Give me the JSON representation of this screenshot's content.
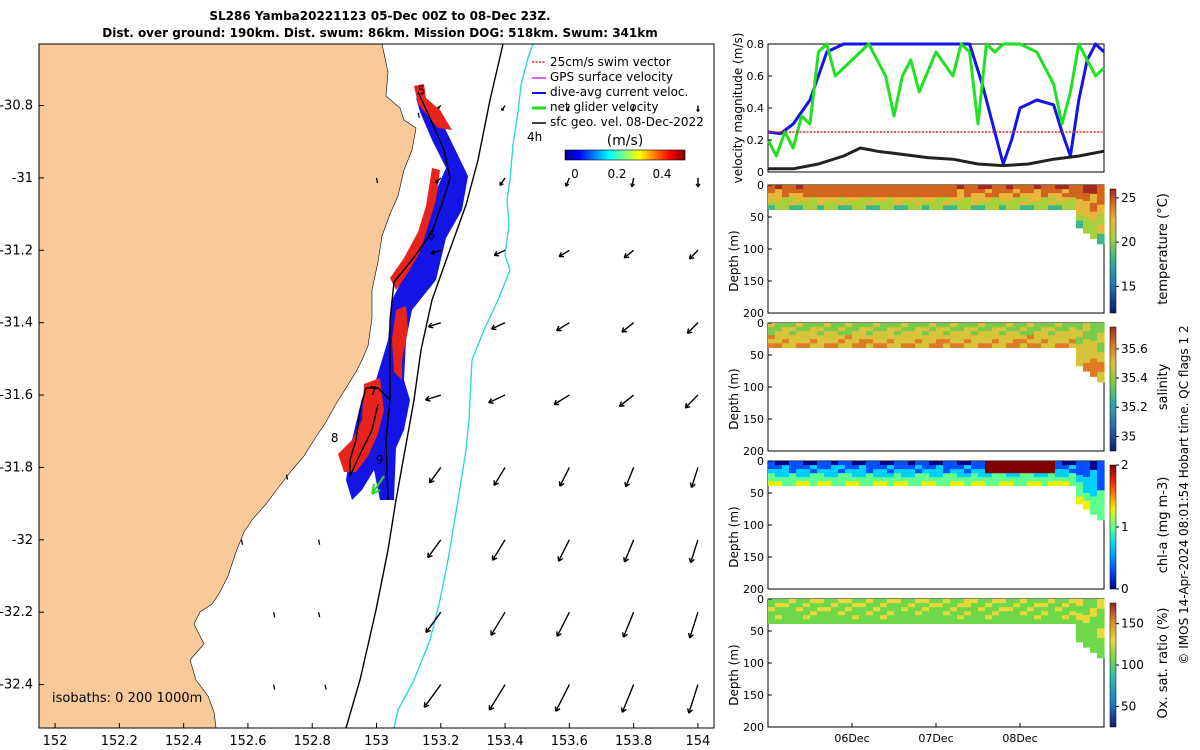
{
  "title": {
    "line1": "SL286 Yamba20221123 05-Dec 00Z to 08-Dec 23Z.",
    "line2": "Dist. over ground: 190km. Dist. swum: 86km. Mission DOG: 518km. Swum: 341km"
  },
  "footer_credit": "© IMOS 14-Apr-2024 08:01:54 Hobart time. QC flags 1  2",
  "colors": {
    "land": "#f9c99a",
    "swim_vector": "#e8231b",
    "current": "#1414e6",
    "glider_velocity": "#22e022",
    "geo_velocity": "#000000",
    "isobath_1000": "#30d8d8"
  },
  "chart_data": [
    {
      "type": "scatter",
      "name": "map",
      "xlim": [
        151.95,
        154.05
      ],
      "ylim": [
        -32.52,
        -30.63
      ],
      "xticks": [
        "152",
        "152.2",
        "152.4",
        "152.6",
        "152.8",
        "153",
        "153.2",
        "153.4",
        "153.6",
        "153.8",
        "154"
      ],
      "yticks": [
        "-30.8",
        "-31",
        "-31.2",
        "-31.4",
        "-31.6",
        "-31.8",
        "-32",
        "-32.2",
        "-32.4"
      ],
      "legend": {
        "placement": "top-right",
        "entries": [
          "25cm/s swim vector",
          "GPS surface velocity",
          "dive-avg current veloc.",
          "net glider velocity",
          "sfc geo. vel. 08-Dec-2022"
        ]
      },
      "colorbar": {
        "label": "(m/s)",
        "ticks": [
          "0",
          "0.2",
          "0.4"
        ],
        "range": [
          0,
          0.5
        ]
      },
      "isobaths_label": "isobaths: 0   200  1000m",
      "time_label": "4h",
      "day_markers": [
        {
          "label": "5",
          "lon": 153.14,
          "lat": -30.77
        },
        {
          "label": "6",
          "lon": 153.17,
          "lat": -31.17
        },
        {
          "label": "7",
          "lon": 152.99,
          "lat": -31.6
        },
        {
          "label": "8",
          "lon": 152.87,
          "lat": -31.73
        },
        {
          "label": "9",
          "lon": 153.01,
          "lat": -31.79
        }
      ],
      "track": [
        [
          153.09,
          -30.77
        ],
        [
          153.12,
          -30.89
        ],
        [
          153.15,
          -30.99
        ],
        [
          153.17,
          -31.08
        ],
        [
          153.15,
          -31.16
        ],
        [
          153.1,
          -31.25
        ],
        [
          153.03,
          -31.3
        ],
        [
          152.99,
          -31.38
        ],
        [
          152.99,
          -31.5
        ],
        [
          152.99,
          -31.6
        ],
        [
          152.98,
          -31.7
        ],
        [
          152.99,
          -31.87
        ],
        [
          152.93,
          -31.75
        ],
        [
          152.89,
          -31.66
        ],
        [
          152.93,
          -31.58
        ],
        [
          152.96,
          -31.62
        ],
        [
          152.93,
          -31.72
        ],
        [
          152.89,
          -31.82
        ],
        [
          152.87,
          -31.79
        ]
      ],
      "geo_vectors_grid": {
        "lons": [
          153.2,
          153.4,
          153.6,
          153.8,
          154.0
        ],
        "lats": [
          -30.8,
          -31.0,
          -31.2,
          -31.4,
          -31.6,
          -31.8,
          -32.0,
          -32.2,
          -32.4
        ]
      }
    },
    {
      "type": "line",
      "name": "velocity_magnitude",
      "ylabel": "velocity magnitude (m/s)",
      "ylim": [
        0,
        0.8
      ],
      "yticks": [
        "0",
        "0.2",
        "0.4",
        "0.6",
        "0.8"
      ],
      "xlim": [
        0,
        4
      ],
      "series": [
        {
          "name": "dive-avg current",
          "x": [
            0,
            0.15,
            0.3,
            0.5,
            0.7,
            0.9,
            1.2,
            1.5,
            1.8,
            2.0,
            2.2,
            2.4,
            2.55,
            2.7,
            2.8,
            2.9,
            3.0,
            3.2,
            3.4,
            3.5,
            3.6,
            3.7,
            3.8,
            3.9,
            4.0
          ],
          "values": [
            0.25,
            0.24,
            0.3,
            0.45,
            0.75,
            0.8,
            0.8,
            0.8,
            0.8,
            0.8,
            0.8,
            0.8,
            0.55,
            0.25,
            0.05,
            0.2,
            0.4,
            0.45,
            0.42,
            0.25,
            0.1,
            0.45,
            0.7,
            0.8,
            0.75
          ]
        },
        {
          "name": "net glider velocity",
          "x": [
            0,
            0.1,
            0.2,
            0.3,
            0.4,
            0.5,
            0.6,
            0.7,
            0.8,
            1.0,
            1.2,
            1.4,
            1.5,
            1.6,
            1.7,
            1.8,
            2.0,
            2.2,
            2.3,
            2.4,
            2.5,
            2.6,
            2.7,
            2.8,
            3.0,
            3.2,
            3.4,
            3.5,
            3.6,
            3.7,
            3.8,
            3.9,
            4.0
          ],
          "values": [
            0.2,
            0.1,
            0.25,
            0.15,
            0.35,
            0.3,
            0.75,
            0.8,
            0.6,
            0.7,
            0.8,
            0.6,
            0.35,
            0.6,
            0.7,
            0.5,
            0.75,
            0.6,
            0.8,
            0.75,
            0.3,
            0.8,
            0.75,
            0.8,
            0.8,
            0.75,
            0.55,
            0.3,
            0.5,
            0.8,
            0.7,
            0.6,
            0.65
          ]
        },
        {
          "name": "25cm/s swim vector",
          "x": [
            0,
            4
          ],
          "values": [
            0.25,
            0.25
          ]
        },
        {
          "name": "sfc geo. vel.",
          "x": [
            0,
            0.3,
            0.6,
            0.9,
            1.1,
            1.3,
            1.6,
            1.9,
            2.2,
            2.5,
            2.8,
            3.1,
            3.4,
            3.7,
            4.0
          ],
          "values": [
            0.02,
            0.02,
            0.05,
            0.1,
            0.15,
            0.13,
            0.11,
            0.09,
            0.08,
            0.05,
            0.04,
            0.05,
            0.08,
            0.1,
            0.13
          ]
        }
      ]
    },
    {
      "type": "heatmap",
      "name": "temperature",
      "ylabel": "Depth (m)",
      "clabel": "temperature (°C)",
      "ylim": [
        0,
        200
      ],
      "yticks": [
        "0",
        "50",
        "100",
        "150",
        "200"
      ],
      "ctick_labels": [
        "25",
        "20",
        "15"
      ],
      "cticks": [
        25,
        20,
        15
      ],
      "crange": [
        12,
        26
      ],
      "surface_value": 24.5,
      "deep_value": 18.0,
      "profile_depth_m": 38
    },
    {
      "type": "heatmap",
      "name": "salinity",
      "ylabel": "Depth (m)",
      "clabel": "salinity",
      "ylim": [
        0,
        200
      ],
      "yticks": [
        "0",
        "50",
        "100",
        "150",
        "200"
      ],
      "ctick_labels": [
        "35.6",
        "35.4",
        "35.2",
        "35"
      ],
      "cticks": [
        35.6,
        35.4,
        35.2,
        35.0
      ],
      "crange": [
        34.9,
        35.75
      ],
      "surface_value": 35.35,
      "deep_value": 35.55,
      "profile_depth_m": 38
    },
    {
      "type": "heatmap",
      "name": "chl_a",
      "ylabel": "Depth (m)",
      "clabel": "chl-a (mg m-3)",
      "ylim": [
        0,
        200
      ],
      "yticks": [
        "0",
        "50",
        "100",
        "150",
        "200"
      ],
      "ctick_labels": [
        "2",
        "1",
        "0"
      ],
      "cticks": [
        2,
        1,
        0
      ],
      "crange": [
        0,
        2
      ],
      "surface_value": 0.2,
      "deep_value": 1.2,
      "profile_depth_m": 38
    },
    {
      "type": "heatmap",
      "name": "oxygen",
      "ylabel": "Depth (m)",
      "clabel": "Ox. sat. ratio (%)",
      "ylim": [
        0,
        200
      ],
      "yticks": [
        "0",
        "50",
        "100",
        "150",
        "200"
      ],
      "ctick_labels": [
        "150",
        "100",
        "50"
      ],
      "cticks": [
        150,
        100,
        50
      ],
      "crange": [
        25,
        175
      ],
      "surface_value": 110,
      "deep_value": 100,
      "profile_depth_m": 38
    },
    {
      "type": "table",
      "name": "time_axis",
      "xlim": [
        0,
        4
      ],
      "tick_positions_days": [
        1,
        2,
        3
      ],
      "xtick_labels": [
        "06Dec",
        "07Dec",
        "08Dec"
      ]
    }
  ]
}
